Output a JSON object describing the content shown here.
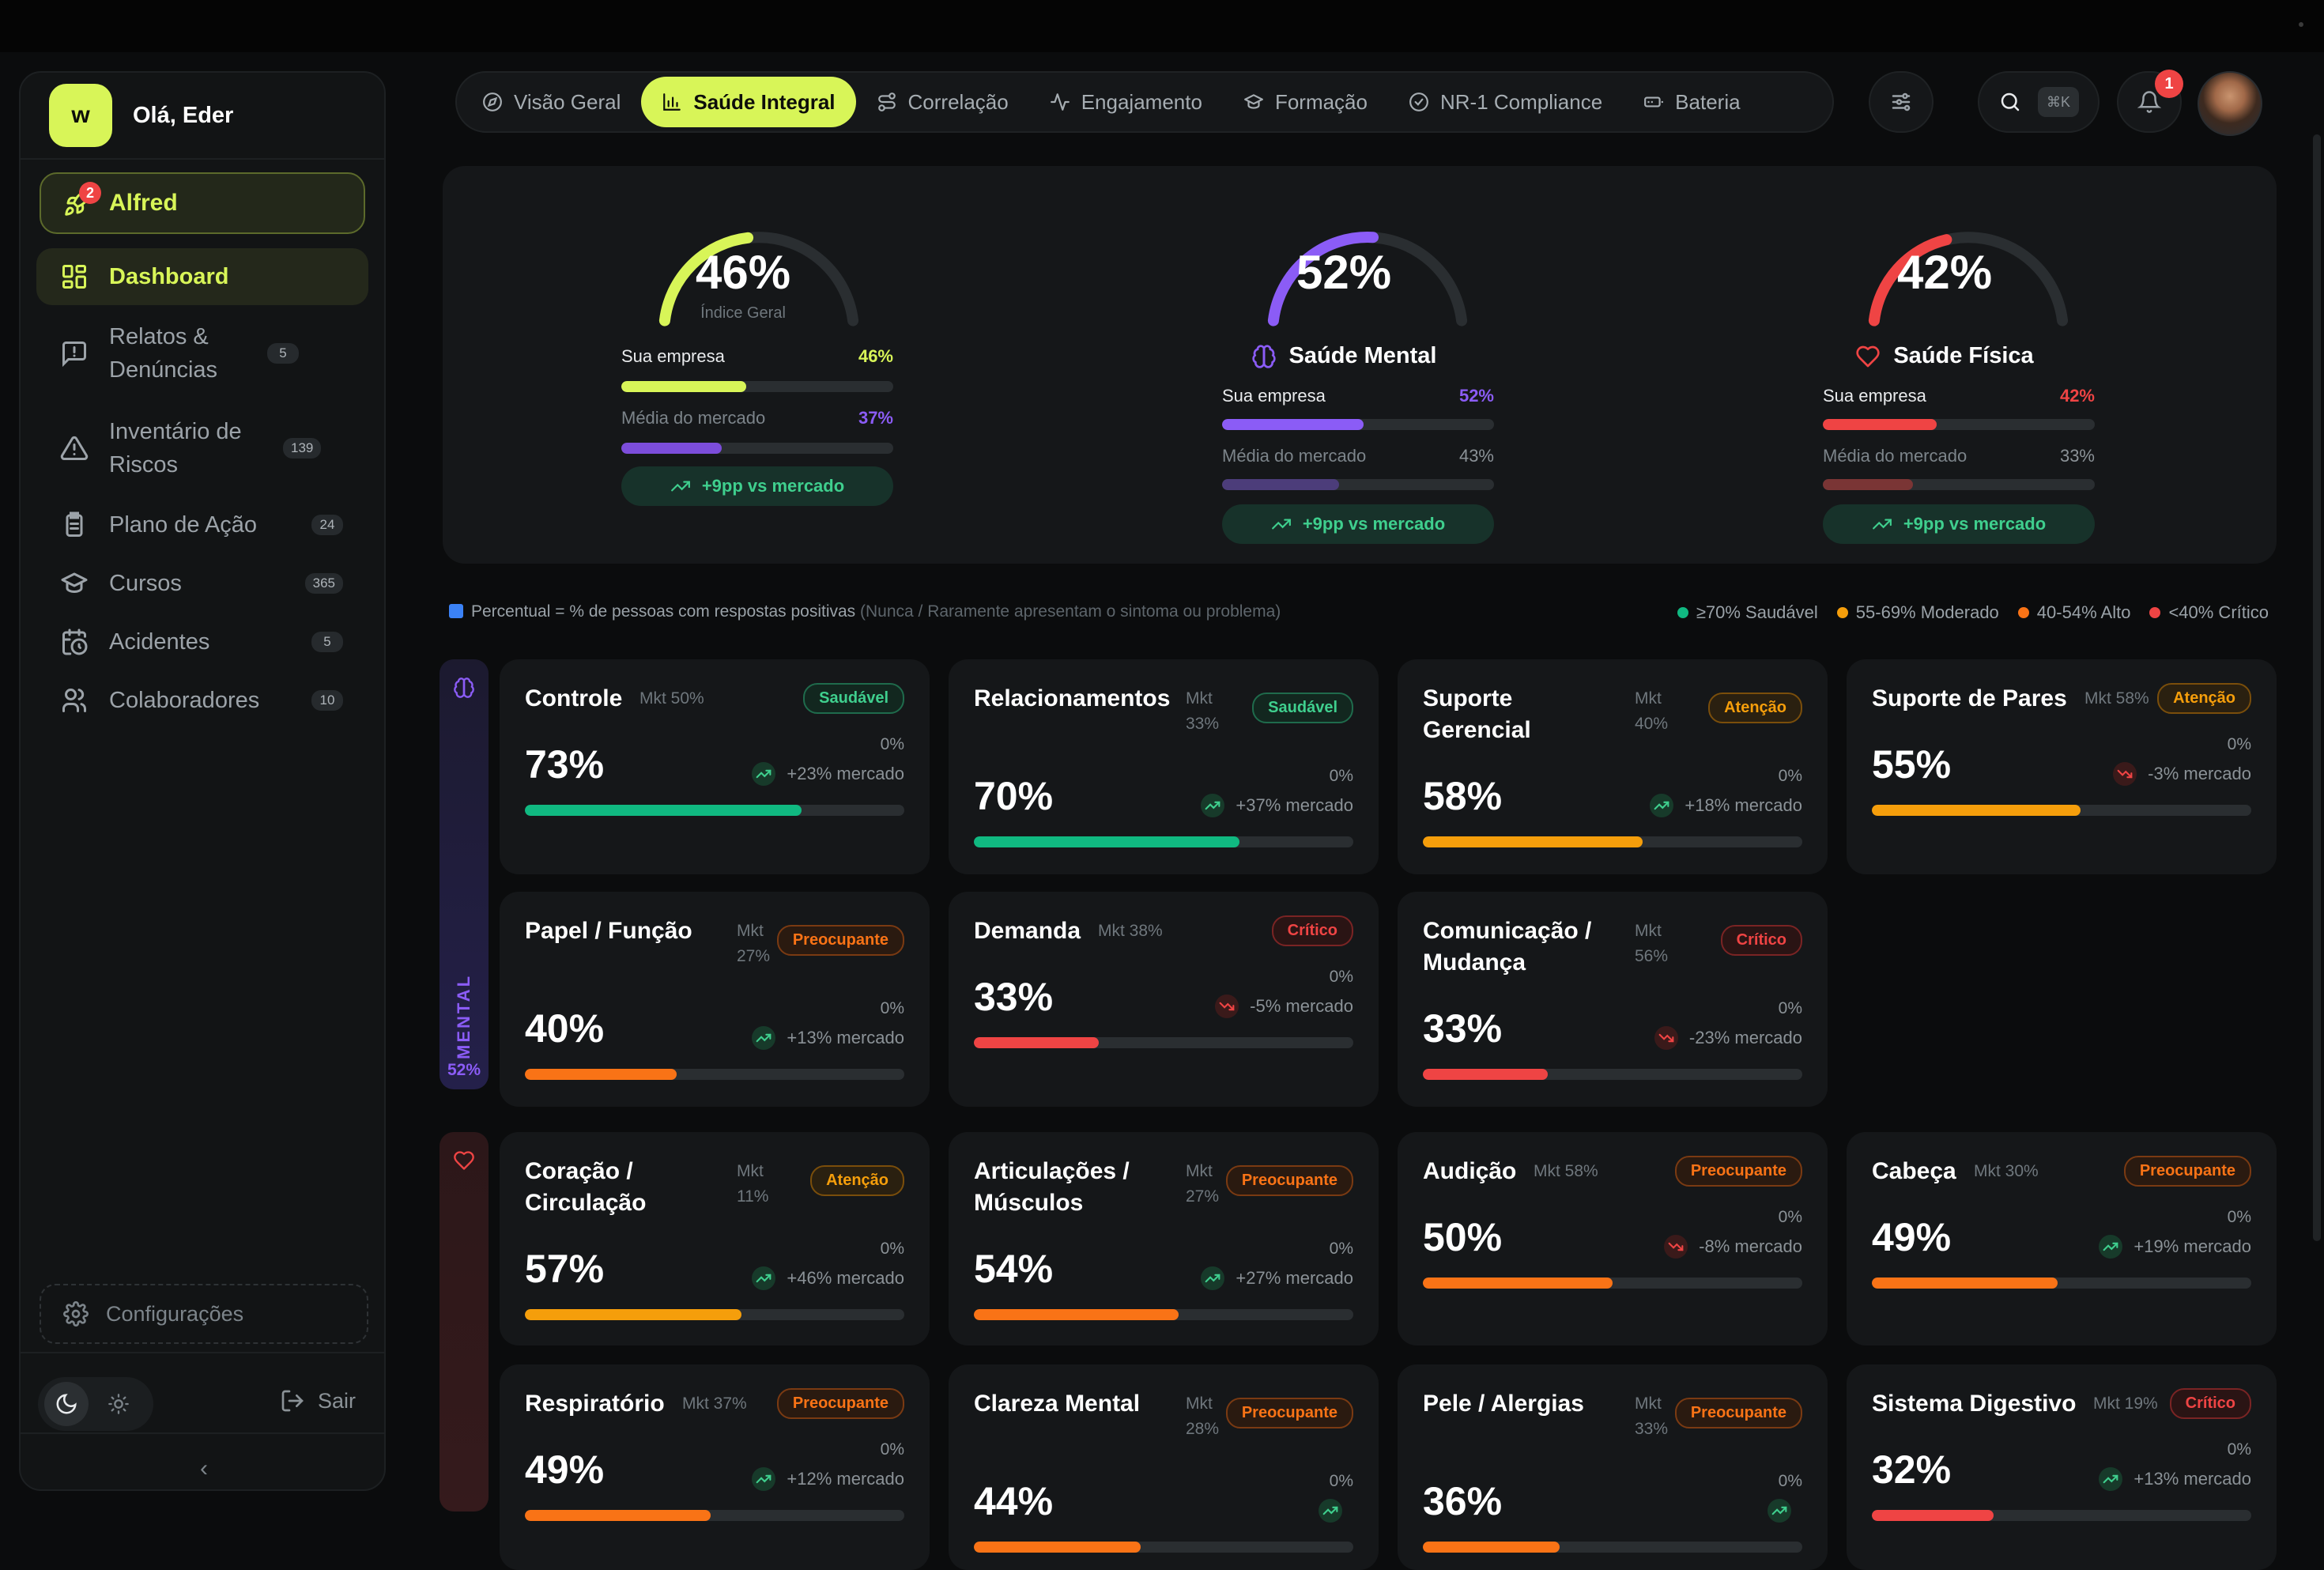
{
  "sidebar": {
    "logo_letter": "w",
    "greeting": "Olá, Eder",
    "alfred": {
      "label": "Alfred",
      "badge": "2"
    },
    "items": [
      {
        "label": "Dashboard",
        "badge": "",
        "icon": "grid-icon"
      },
      {
        "label": "Relatos & Denúncias",
        "badge": "5",
        "icon": "message-alert-icon"
      },
      {
        "label": "Inventário de Riscos",
        "badge": "139",
        "icon": "warning-triangle-icon"
      },
      {
        "label": "Plano de Ação",
        "badge": "24",
        "icon": "clipboard-icon"
      },
      {
        "label": "Cursos",
        "badge": "365",
        "icon": "graduation-cap-icon"
      },
      {
        "label": "Acidentes",
        "badge": "5",
        "icon": "calendar-clock-icon"
      },
      {
        "label": "Colaboradores",
        "badge": "10",
        "icon": "users-icon"
      }
    ],
    "settings_label": "Configurações",
    "logout_label": "Sair",
    "collapse_glyph": "‹"
  },
  "tabs": [
    {
      "label": "Visão Geral",
      "icon": "compass-icon"
    },
    {
      "label": "Saúde Integral",
      "icon": "bar-chart-icon"
    },
    {
      "label": "Correlação",
      "icon": "route-icon"
    },
    {
      "label": "Engajamento",
      "icon": "activity-icon"
    },
    {
      "label": "Formação",
      "icon": "graduation-cap-icon"
    },
    {
      "label": "NR-1 Compliance",
      "icon": "check-circle-icon"
    },
    {
      "label": "Bateria",
      "icon": "battery-icon"
    }
  ],
  "search": {
    "shortcut": "⌘K"
  },
  "notifications": {
    "count": "1"
  },
  "colors": {
    "accent": "#d8f558",
    "purple": "#8b5cf6",
    "red": "#ef4444",
    "green": "#10b981",
    "yellow": "#f59e0b",
    "orange": "#f97316",
    "bg": "#0b0c0d",
    "panel": "#151719"
  },
  "summary": {
    "geral": {
      "value": "46%",
      "fraction": 0.46,
      "sub": "Índice Geral",
      "company_label": "Sua empresa",
      "company_value": "46%",
      "company_fraction": 0.46,
      "market_label": "Média do mercado",
      "market_value": "37%",
      "market_fraction": 0.37,
      "delta": "+9pp vs mercado",
      "color": "#d8f558",
      "market_color": "#7c4ddb",
      "company_value_color": "#d8f558",
      "market_value_color": "#8b5cf6"
    },
    "mental": {
      "value": "52%",
      "fraction": 0.52,
      "name": "Saúde Mental",
      "company_label": "Sua empresa",
      "company_value": "52%",
      "company_fraction": 0.52,
      "market_label": "Média do mercado",
      "market_value": "43%",
      "market_fraction": 0.43,
      "delta": "+9pp vs mercado",
      "color": "#8b5cf6",
      "market_color": "#4c3d7a",
      "company_value_color": "#8b5cf6",
      "market_value_color": "#8b9297"
    },
    "fisica": {
      "value": "42%",
      "fraction": 0.42,
      "name": "Saúde Física",
      "company_label": "Sua empresa",
      "company_value": "42%",
      "company_fraction": 0.42,
      "market_label": "Média do mercado",
      "market_value": "33%",
      "market_fraction": 0.33,
      "delta": "+9pp vs mercado",
      "color": "#ef4444",
      "market_color": "#7a3535",
      "company_value_color": "#ef4444",
      "market_value_color": "#8b9297"
    }
  },
  "note": {
    "main": "Percentual = % de pessoas com respostas positivas",
    "muted": "(Nunca / Raramente apresentam o sintoma ou problema)"
  },
  "legend": [
    {
      "label": "≥70% Saudável",
      "color": "#10b981"
    },
    {
      "label": "55-69% Moderado",
      "color": "#f59e0b"
    },
    {
      "label": "40-54% Alto",
      "color": "#f97316"
    },
    {
      "label": "<40% Crítico",
      "color": "#ef4444"
    }
  ],
  "sections": {
    "mental": {
      "label": "MENTAL",
      "value": "52%"
    }
  },
  "cards": [
    {
      "title": "Controle",
      "mkt": "Mkt 50%",
      "badge": "Saudável",
      "status": "saudavel",
      "value": "73%",
      "fraction": 0.73,
      "zero": "0%",
      "market": "+23% mercado",
      "trend": "up"
    },
    {
      "title": "Relacionamentos",
      "mkt": "Mkt 33%",
      "badge": "Saudável",
      "status": "saudavel",
      "value": "70%",
      "fraction": 0.7,
      "zero": "0%",
      "market": "+37% mercado",
      "trend": "up"
    },
    {
      "title": "Suporte Gerencial",
      "mkt": "Mkt 40%",
      "badge": "Atenção",
      "status": "atencao",
      "value": "58%",
      "fraction": 0.58,
      "zero": "0%",
      "market": "+18% mercado",
      "trend": "up"
    },
    {
      "title": "Suporte de Pares",
      "mkt": "Mkt 58%",
      "badge": "Atenção",
      "status": "atencao",
      "value": "55%",
      "fraction": 0.55,
      "zero": "0%",
      "market": "-3% mercado",
      "trend": "down"
    },
    {
      "title": "Papel / Função",
      "mkt": "Mkt 27%",
      "badge": "Preocupante",
      "status": "preocupante",
      "value": "40%",
      "fraction": 0.4,
      "zero": "0%",
      "market": "+13% mercado",
      "trend": "up"
    },
    {
      "title": "Demanda",
      "mkt": "Mkt 38%",
      "badge": "Crítico",
      "status": "critico",
      "value": "33%",
      "fraction": 0.33,
      "zero": "0%",
      "market": "-5% mercado",
      "trend": "down"
    },
    {
      "title": "Comunicação / Mudança",
      "mkt": "Mkt 56%",
      "badge": "Crítico",
      "status": "critico",
      "value": "33%",
      "fraction": 0.33,
      "zero": "0%",
      "market": "-23% mercado",
      "trend": "down"
    },
    {
      "title": "Coração / Circulação",
      "mkt": "Mkt 11%",
      "badge": "Atenção",
      "status": "atencao",
      "value": "57%",
      "fraction": 0.57,
      "zero": "0%",
      "market": "+46% mercado",
      "trend": "up"
    },
    {
      "title": "Articulações / Músculos",
      "mkt": "Mkt 27%",
      "badge": "Preocupante",
      "status": "preocupante",
      "value": "54%",
      "fraction": 0.54,
      "zero": "0%",
      "market": "+27% mercado",
      "trend": "up"
    },
    {
      "title": "Audição",
      "mkt": "Mkt 58%",
      "badge": "Preocupante",
      "status": "preocupante",
      "value": "50%",
      "fraction": 0.5,
      "zero": "0%",
      "market": "-8% mercado",
      "trend": "down"
    },
    {
      "title": "Cabeça",
      "mkt": "Mkt 30%",
      "badge": "Preocupante",
      "status": "preocupante",
      "value": "49%",
      "fraction": 0.49,
      "zero": "0%",
      "market": "+19% mercado",
      "trend": "up"
    },
    {
      "title": "Respiratório",
      "mkt": "Mkt 37%",
      "badge": "Preocupante",
      "status": "preocupante",
      "value": "49%",
      "fraction": 0.49,
      "zero": "0%",
      "market": "+12% mercado",
      "trend": "up"
    },
    {
      "title": "Clareza Mental",
      "mkt": "Mkt 28%",
      "badge": "Preocupante",
      "status": "preocupante",
      "value": "44%",
      "fraction": 0.44,
      "zero": "0%",
      "market": "",
      "trend": "up"
    },
    {
      "title": "Pele / Alergias",
      "mkt": "Mkt 33%",
      "badge": "Preocupante",
      "status": "preocupante",
      "value": "36%",
      "fraction": 0.36,
      "zero": "0%",
      "market": "",
      "trend": "up"
    },
    {
      "title": "Sistema Digestivo",
      "mkt": "Mkt 19%",
      "badge": "Crítico",
      "status": "critico",
      "value": "32%",
      "fraction": 0.32,
      "zero": "0%",
      "market": "+13% mercado",
      "trend": "up"
    }
  ]
}
